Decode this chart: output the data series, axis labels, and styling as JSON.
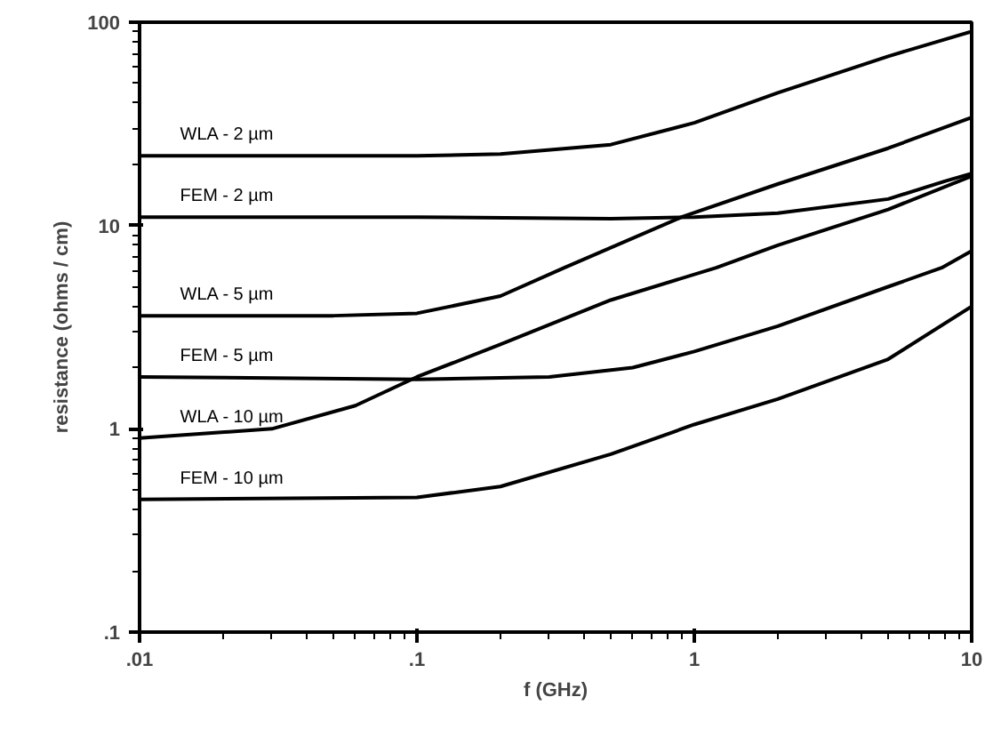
{
  "chart_data": {
    "type": "line",
    "xlabel": "f (GHz)",
    "ylabel": "resistance (ohms / cm)",
    "log": "xy",
    "xlim": [
      0.01,
      10
    ],
    "ylim": [
      0.1,
      100
    ],
    "xticks": [
      {
        "value": 0.01,
        "label": ".01"
      },
      {
        "value": 0.1,
        "label": ".1"
      },
      1,
      10
    ],
    "yticks": [
      {
        "value": 0.1,
        "label": ".1"
      },
      1,
      10,
      100
    ],
    "grid": false,
    "legend": "left",
    "marker": "none",
    "line_style": "solid",
    "series": [
      {
        "name": "WLA - 2 µm",
        "color": "#000000",
        "x": [
          0.01,
          0.1,
          0.2,
          0.5,
          1,
          2,
          5,
          10
        ],
        "values": [
          22,
          22,
          22.5,
          25,
          32,
          45,
          68,
          90
        ]
      },
      {
        "name": "FEM - 2 µm",
        "color": "#000000",
        "x": [
          0.01,
          0.1,
          0.5,
          1,
          2,
          5,
          8,
          10
        ],
        "values": [
          11,
          11,
          10.8,
          11,
          11.5,
          13.5,
          16.5,
          18
        ]
      },
      {
        "name": "WLA - 5 µm",
        "color": "#000000",
        "x": [
          0.01,
          0.05,
          0.1,
          0.2,
          0.34,
          0.9,
          2,
          5,
          10
        ],
        "values": [
          3.6,
          3.6,
          3.7,
          4.5,
          6.2,
          11,
          16,
          24,
          34
        ]
      },
      {
        "name": "FEM - 5 µm",
        "color": "#000000",
        "x": [
          0.01,
          0.1,
          0.3,
          0.6,
          1,
          2,
          5,
          7.8,
          10
        ],
        "values": [
          1.8,
          1.75,
          1.8,
          2.0,
          2.4,
          3.2,
          5,
          6.2,
          7.5
        ]
      },
      {
        "name": "WLA - 10 µm",
        "color": "#000000",
        "x": [
          0.01,
          0.03,
          0.06,
          0.1,
          0.2,
          0.5,
          1.2,
          2,
          5,
          10
        ],
        "values": [
          0.9,
          1.0,
          1.3,
          1.8,
          2.6,
          4.3,
          6.2,
          8,
          12,
          17.5
        ]
      },
      {
        "name": "FEM - 10 µm",
        "color": "#000000",
        "x": [
          0.01,
          0.1,
          0.2,
          0.5,
          1,
          2,
          5,
          10
        ],
        "values": [
          0.45,
          0.46,
          0.52,
          0.75,
          1.05,
          1.4,
          2.2,
          4.0
        ]
      }
    ]
  }
}
